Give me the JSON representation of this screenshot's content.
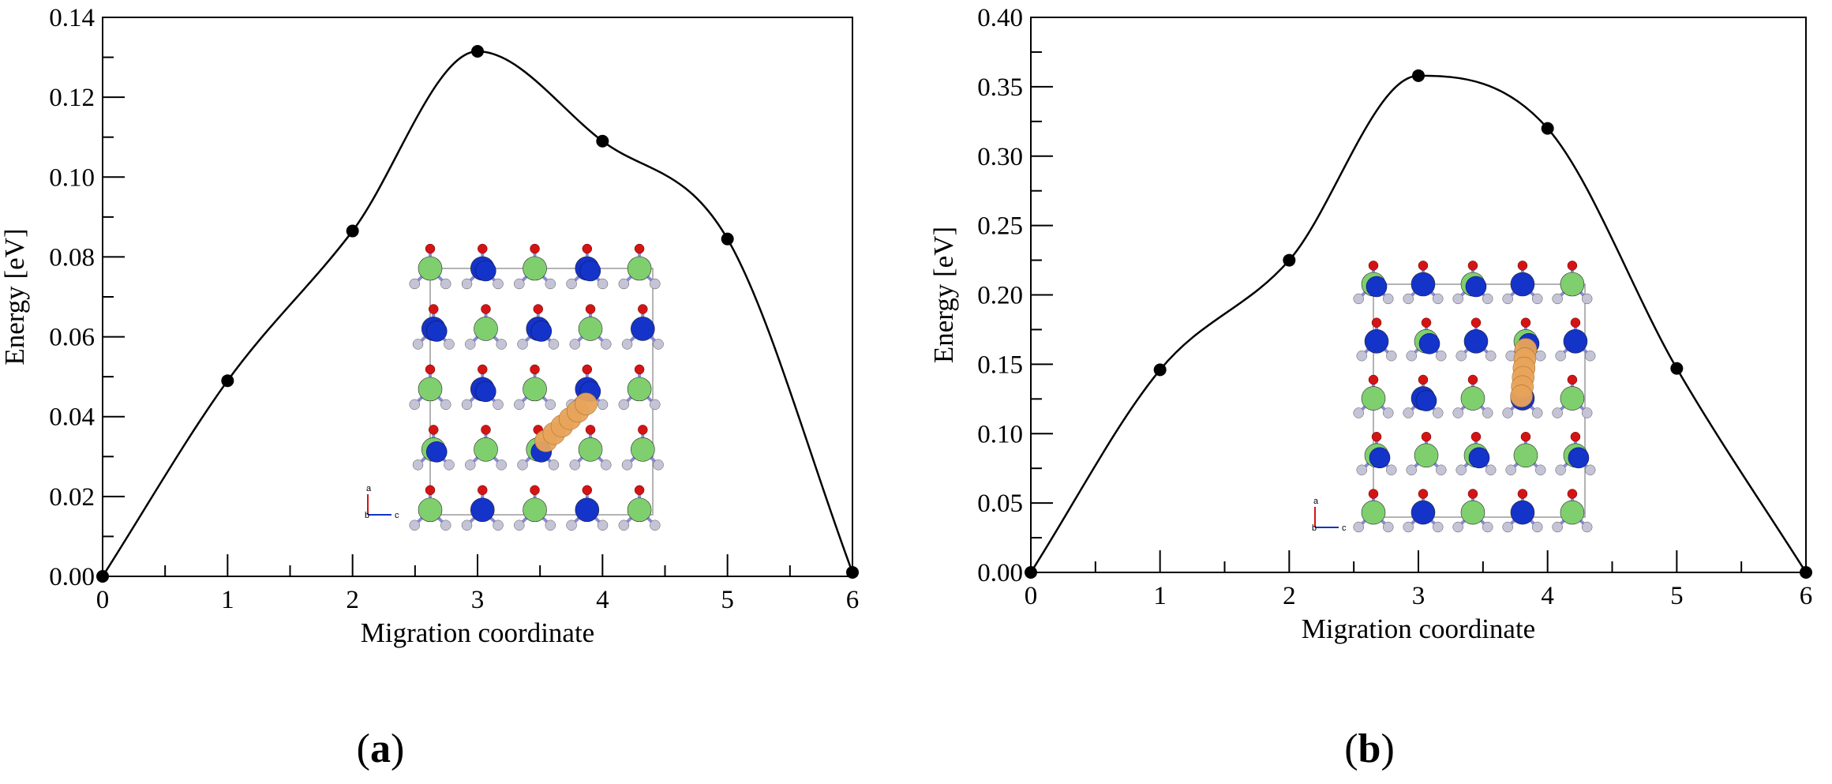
{
  "chart_data": [
    {
      "type": "line",
      "panel_label": "a",
      "xlabel": "Migration coordinate",
      "ylabel": "Energy [eV]",
      "xlim": [
        0,
        6
      ],
      "ylim": [
        0,
        0.14
      ],
      "xticks": [
        "0",
        "1",
        "2",
        "3",
        "4",
        "5",
        "6"
      ],
      "yticks": [
        "0.00",
        "0.02",
        "0.04",
        "0.06",
        "0.08",
        "0.10",
        "0.12",
        "0.14"
      ],
      "x": [
        0,
        1,
        2,
        3,
        4,
        5,
        6
      ],
      "values": [
        0.0,
        0.049,
        0.0865,
        0.1315,
        0.109,
        0.0845,
        0.001
      ],
      "grid": false,
      "inset": "crystal-structure-migration-path",
      "inset_axis_letters": [
        "a",
        "b",
        "c"
      ]
    },
    {
      "type": "line",
      "panel_label": "b",
      "xlabel": "Migration coordinate",
      "ylabel": "Energy [eV]",
      "xlim": [
        0,
        6
      ],
      "ylim": [
        0,
        0.4
      ],
      "xticks": [
        "0",
        "1",
        "2",
        "3",
        "4",
        "5",
        "6"
      ],
      "yticks": [
        "0.00",
        "0.05",
        "0.10",
        "0.15",
        "0.20",
        "0.25",
        "0.30",
        "0.35",
        "0.40"
      ],
      "x": [
        0,
        1,
        2,
        3,
        4,
        5,
        6
      ],
      "values": [
        0.0,
        0.146,
        0.225,
        0.358,
        0.32,
        0.147,
        0.0
      ],
      "grid": false,
      "inset": "crystal-structure-migration-path",
      "inset_axis_letters": [
        "a",
        "b",
        "c"
      ]
    }
  ],
  "colors": {
    "line": "#000000",
    "point": "#000000",
    "atom_green": "#7fcf6e",
    "atom_blue": "#1433c8",
    "atom_red": "#d41414",
    "atom_grey": "#c4c4d6",
    "bond": "#8a8ad6",
    "path_orange": "#e8a45a"
  }
}
